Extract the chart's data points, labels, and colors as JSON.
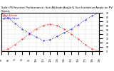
{
  "title": "Solar PV/Inverter Performance  Sun Altitude Angle & Sun Incidence Angle on PV Panels",
  "legend_labels": [
    "Sun Altitude",
    "Sun Incidence"
  ],
  "legend_colors": [
    "red",
    "blue"
  ],
  "time_hours": [
    5,
    6,
    7,
    8,
    9,
    10,
    11,
    12,
    13,
    14,
    15,
    16,
    17,
    18,
    19
  ],
  "altitude_angle": [
    0,
    5,
    15,
    28,
    40,
    52,
    60,
    63,
    60,
    52,
    40,
    28,
    15,
    5,
    0
  ],
  "incidence_angle": [
    90,
    78,
    65,
    52,
    42,
    33,
    25,
    27,
    35,
    43,
    52,
    62,
    73,
    83,
    90
  ],
  "ylim": [
    0,
    90
  ],
  "yticks": [
    0,
    10,
    20,
    30,
    40,
    50,
    60,
    70,
    80,
    90
  ],
  "xtick_labels": [
    "5h",
    "6h",
    "7h",
    "8h",
    "9h",
    "10h",
    "11h",
    "12h",
    "13h",
    "14h",
    "15h",
    "16h",
    "17h",
    "18h",
    "19h"
  ],
  "bg_color": "#ffffff",
  "grid_color": "#aaaaaa",
  "title_fontsize": 2.8,
  "tick_fontsize": 2.2,
  "legend_fontsize": 2.2,
  "line_width": 0.6,
  "marker_size": 0.8,
  "fig_width": 1.6,
  "fig_height": 1.0,
  "dpi": 100
}
